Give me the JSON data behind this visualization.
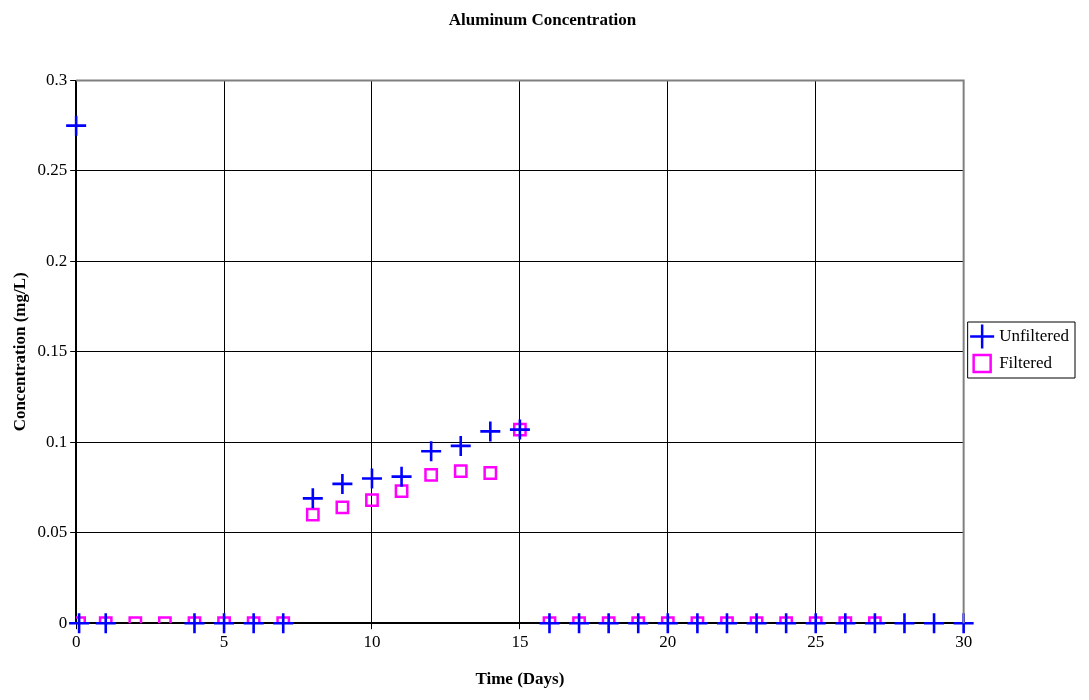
{
  "chart_data": {
    "type": "scatter",
    "title": "Aluminum Concentration",
    "xlabel": "Time (Days)",
    "ylabel": "Concentration (mg/L)",
    "xlim": [
      0,
      30
    ],
    "xticks": [
      0,
      5,
      10,
      15,
      20,
      25,
      30
    ],
    "ylim": [
      0,
      0.3
    ],
    "yticks": [
      0,
      0.05,
      0.1,
      0.15,
      0.2,
      0.25,
      0.3
    ],
    "grid": true,
    "legend": "right",
    "series": [
      {
        "name": "Unfiltered",
        "color": "#0000ff",
        "marker": "cross",
        "x": [
          0,
          0.1,
          1,
          4,
          5,
          6,
          7,
          8,
          9,
          10,
          11,
          12,
          13,
          14,
          15,
          16,
          17,
          18,
          19,
          20,
          21,
          22,
          23,
          24,
          25,
          26,
          27,
          28,
          29,
          30
        ],
        "values": [
          0.275,
          0,
          0,
          0,
          0,
          0,
          0,
          0.069,
          0.077,
          0.08,
          0.081,
          0.095,
          0.098,
          0.106,
          0.107,
          0,
          0,
          0,
          0,
          0,
          0,
          0,
          0,
          0,
          0,
          0,
          0,
          0,
          0,
          0
        ]
      },
      {
        "name": "Filtered",
        "color": "#ff00ff",
        "marker": "square",
        "x": [
          0.1,
          1,
          2,
          3,
          4,
          5,
          6,
          7,
          8,
          9,
          10,
          11,
          12,
          13,
          14,
          15,
          16,
          17,
          18,
          19,
          20,
          21,
          22,
          23,
          24,
          25,
          26,
          27
        ],
        "values": [
          0,
          0,
          0,
          0,
          0,
          0,
          0,
          0,
          0.06,
          0.064,
          0.068,
          0.073,
          0.082,
          0.084,
          0.083,
          0.107,
          0,
          0,
          0,
          0,
          0,
          0,
          0,
          0,
          0,
          0,
          0,
          0
        ]
      }
    ]
  }
}
